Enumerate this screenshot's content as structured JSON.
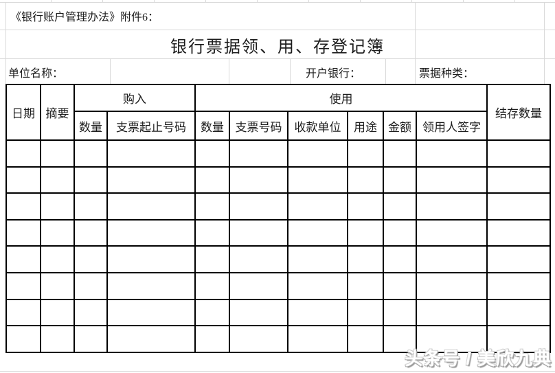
{
  "header": {
    "attachment_note": "《银行账户管理办法》附件6：",
    "title": "银行票据领、用、存登记簿"
  },
  "info": {
    "unit_name_label": "单位名称：",
    "bank_label": "开户银行：",
    "bill_type_label": "票据种类："
  },
  "table": {
    "column_count": 11,
    "body_row_count": 8,
    "headers": {
      "date": "日期",
      "summary": "摘要",
      "purchase_group": "购入",
      "usage_group": "使用",
      "balance": "结存数量",
      "purchase_qty": "数量",
      "purchase_check_range": "支票起止号码",
      "usage_qty": "数量",
      "check_number": "支票号码",
      "payee": "收款单位",
      "purpose": "用途",
      "amount": "金额",
      "signature": "领用人签字"
    }
  },
  "footer": {
    "watermark": "头条号 / 美欣九典"
  },
  "colors": {
    "table_border": "#000000",
    "text": "#1c1c1c",
    "faint_grid": "#d9d9d9",
    "watermark_fill": "#ffffff",
    "watermark_shadow": "#9a9a9a"
  }
}
